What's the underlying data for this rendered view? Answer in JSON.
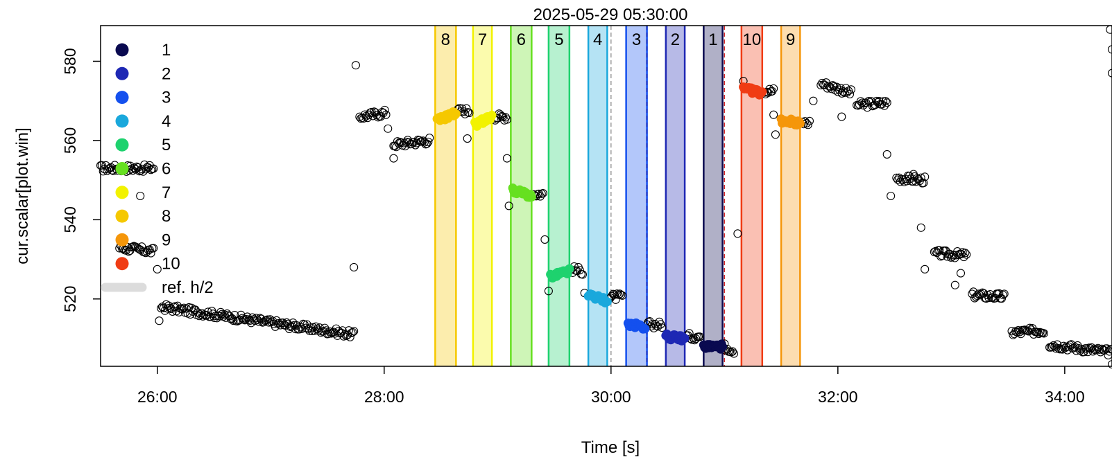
{
  "chart_data": {
    "type": "scatter",
    "title": "2025-05-29 05:30:00",
    "xlabel": "Time [s]",
    "ylabel": "cur.scalar[plot.win]",
    "xlim": [
      "25:30",
      "34:25"
    ],
    "ylim": [
      503,
      589
    ],
    "x_ticks": [
      "26:00",
      "28:00",
      "30:00",
      "32:00",
      "34:00"
    ],
    "y_ticks": [
      520,
      540,
      560,
      580
    ],
    "grid": false,
    "legend": {
      "position": "top-left",
      "entries": [
        "1",
        "2",
        "3",
        "4",
        "5",
        "6",
        "7",
        "8",
        "9",
        "10",
        "ref. h/2"
      ]
    },
    "bands": [
      {
        "label": "8",
        "start": "28:27",
        "end": "28:38",
        "color": "#f5c800"
      },
      {
        "label": "7",
        "start": "28:47",
        "end": "28:57",
        "color": "#f2f200"
      },
      {
        "label": "6",
        "start": "29:07",
        "end": "29:18",
        "color": "#66e020"
      },
      {
        "label": "5",
        "start": "29:27",
        "end": "29:38",
        "color": "#1ed26e"
      },
      {
        "label": "4",
        "start": "29:48",
        "end": "29:58",
        "color": "#1aa8dc"
      },
      {
        "label": "3",
        "start": "30:08",
        "end": "30:19",
        "color": "#1450ee"
      },
      {
        "label": "2",
        "start": "30:29",
        "end": "30:39",
        "color": "#1e28b4"
      },
      {
        "label": "1",
        "start": "30:49",
        "end": "30:59",
        "color": "#0a0a50"
      },
      {
        "label": "10",
        "start": "31:09",
        "end": "31:20",
        "color": "#f03c14"
      },
      {
        "label": "9",
        "start": "31:30",
        "end": "31:40",
        "color": "#f5960a"
      }
    ],
    "highlight_series": [
      {
        "name": "8",
        "color": "#f5c800",
        "x_range": [
          "28:28",
          "28:38"
        ],
        "y_start": 565,
        "y_end": 567
      },
      {
        "name": "7",
        "color": "#f2f200",
        "x_range": [
          "28:48",
          "28:57"
        ],
        "y_start": 564,
        "y_end": 566
      },
      {
        "name": "6",
        "color": "#66e020",
        "x_range": [
          "29:08",
          "29:18"
        ],
        "y_start": 547.5,
        "y_end": 546
      },
      {
        "name": "5",
        "color": "#1ed26e",
        "x_range": [
          "29:28",
          "29:38"
        ],
        "y_start": 525.5,
        "y_end": 527
      },
      {
        "name": "4",
        "color": "#1aa8dc",
        "x_range": [
          "29:48",
          "29:58"
        ],
        "y_start": 521,
        "y_end": 519.5
      },
      {
        "name": "3",
        "color": "#1450ee",
        "x_range": [
          "30:09",
          "30:18"
        ],
        "y_start": 513.5,
        "y_end": 513
      },
      {
        "name": "2",
        "color": "#1e28b4",
        "x_range": [
          "30:29",
          "30:39"
        ],
        "y_start": 510.5,
        "y_end": 510
      },
      {
        "name": "1",
        "color": "#0a0a50",
        "x_range": [
          "30:49",
          "30:59"
        ],
        "y_start": 508,
        "y_end": 508
      },
      {
        "name": "10",
        "color": "#f03c14",
        "x_range": [
          "31:10",
          "31:20"
        ],
        "y_start": 573,
        "y_end": 572
      },
      {
        "name": "9",
        "color": "#f5960a",
        "x_range": [
          "31:30",
          "31:40"
        ],
        "y_start": 565,
        "y_end": 564.5
      }
    ],
    "background_segments": [
      {
        "x_range": [
          "25:30",
          "25:58"
        ],
        "y_start": 553,
        "y_end": 553
      },
      {
        "x_range": [
          "25:40",
          "25:58"
        ],
        "y_start": 533,
        "y_end": 532
      },
      {
        "x_range": [
          "26:02",
          "27:44"
        ],
        "y_start": 518,
        "y_end": 511
      },
      {
        "x_range": [
          "27:47",
          "28:01"
        ],
        "y_start": 566,
        "y_end": 567
      },
      {
        "x_range": [
          "28:05",
          "28:24"
        ],
        "y_start": 559,
        "y_end": 560
      },
      {
        "x_range": [
          "28:39",
          "28:45"
        ],
        "y_start": 567.5,
        "y_end": 567.5
      },
      {
        "x_range": [
          "28:58",
          "29:05"
        ],
        "y_start": 566,
        "y_end": 566
      },
      {
        "x_range": [
          "29:19",
          "29:24"
        ],
        "y_start": 546.5,
        "y_end": 546.5
      },
      {
        "x_range": [
          "29:39",
          "29:45"
        ],
        "y_start": 527.5,
        "y_end": 527
      },
      {
        "x_range": [
          "29:59",
          "30:06"
        ],
        "y_start": 520.5,
        "y_end": 520.5
      },
      {
        "x_range": [
          "30:19",
          "30:27"
        ],
        "y_start": 513.5,
        "y_end": 513.5
      },
      {
        "x_range": [
          "30:40",
          "30:47"
        ],
        "y_start": 510.5,
        "y_end": 510.5
      },
      {
        "x_range": [
          "31:00",
          "31:05"
        ],
        "y_start": 508,
        "y_end": 507
      },
      {
        "x_range": [
          "31:21",
          "31:26"
        ],
        "y_start": 572.5,
        "y_end": 572.5
      },
      {
        "x_range": [
          "31:41",
          "31:45"
        ],
        "y_start": 564.5,
        "y_end": 564.5
      },
      {
        "x_range": [
          "31:51",
          "32:07"
        ],
        "y_start": 574.5,
        "y_end": 572
      },
      {
        "x_range": [
          "32:10",
          "32:26"
        ],
        "y_start": 569,
        "y_end": 569.5
      },
      {
        "x_range": [
          "32:31",
          "32:46"
        ],
        "y_start": 550.5,
        "y_end": 550
      },
      {
        "x_range": [
          "32:51",
          "33:08"
        ],
        "y_start": 531.5,
        "y_end": 531
      },
      {
        "x_range": [
          "33:11",
          "33:28"
        ],
        "y_start": 521,
        "y_end": 520.5
      },
      {
        "x_range": [
          "33:32",
          "33:49"
        ],
        "y_start": 511.5,
        "y_end": 512
      },
      {
        "x_range": [
          "33:52",
          "34:25"
        ],
        "y_start": 508.5,
        "y_end": 506.5
      }
    ],
    "outliers": [
      {
        "x": "27:45",
        "y": 579
      },
      {
        "x": "27:44",
        "y": 528
      },
      {
        "x": "26:01",
        "y": 514.5
      },
      {
        "x": "26:00",
        "y": 527.5
      },
      {
        "x": "25:51",
        "y": 546
      },
      {
        "x": "28:05",
        "y": 555.5
      },
      {
        "x": "28:02",
        "y": 563
      },
      {
        "x": "28:44",
        "y": 560.5
      },
      {
        "x": "29:05",
        "y": 555.5
      },
      {
        "x": "29:06",
        "y": 543.5
      },
      {
        "x": "29:25",
        "y": 535
      },
      {
        "x": "29:27",
        "y": 522
      },
      {
        "x": "29:46",
        "y": 521.5
      },
      {
        "x": "31:07",
        "y": 536.5
      },
      {
        "x": "31:10",
        "y": 575
      },
      {
        "x": "31:26",
        "y": 566.5
      },
      {
        "x": "31:27",
        "y": 561.5
      },
      {
        "x": "31:47",
        "y": 570
      },
      {
        "x": "32:02",
        "y": 566
      },
      {
        "x": "32:26",
        "y": 556.5
      },
      {
        "x": "32:28",
        "y": 546
      },
      {
        "x": "32:40",
        "y": 551.5
      },
      {
        "x": "32:44",
        "y": 538
      },
      {
        "x": "32:46",
        "y": 527.5
      },
      {
        "x": "33:05",
        "y": 526.5
      },
      {
        "x": "33:02",
        "y": 523.5
      },
      {
        "x": "34:24",
        "y": 588
      },
      {
        "x": "34:25",
        "y": 583
      },
      {
        "x": "34:25",
        "y": 577
      },
      {
        "x": "34:25",
        "y": 503.5
      }
    ],
    "ref_lines": [
      {
        "x": "30:00",
        "style": "dashed",
        "color": "#999999"
      },
      {
        "x": "30:19",
        "style": "dashed",
        "color": "#1e28b4"
      },
      {
        "x": "31:00",
        "style": "dashed",
        "color": "#d22828"
      },
      {
        "x": "31:20",
        "style": "dashed",
        "color": "#f03c14"
      }
    ]
  }
}
